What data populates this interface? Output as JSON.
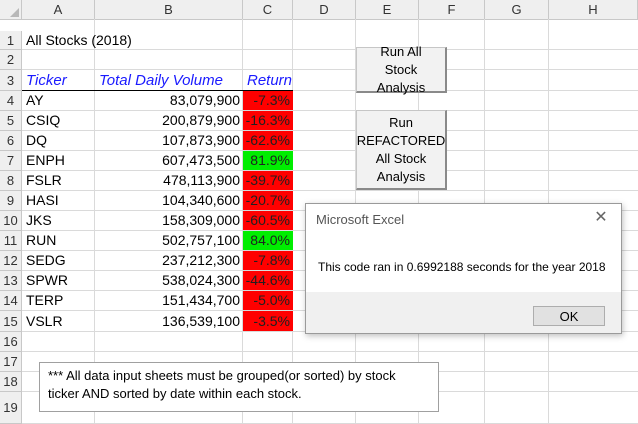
{
  "columns": [
    "A",
    "B",
    "C",
    "D",
    "E",
    "F",
    "G",
    "H"
  ],
  "rows": [
    "1",
    "2",
    "3",
    "4",
    "5",
    "6",
    "7",
    "8",
    "9",
    "10",
    "11",
    "12",
    "13",
    "14",
    "15",
    "16",
    "17",
    "18",
    "19"
  ],
  "title": "All Stocks (2018)",
  "headers": {
    "ticker": "Ticker",
    "volume": "Total Daily Volume",
    "return": "Return"
  },
  "data": [
    {
      "ticker": "AY",
      "volume": "83,079,900",
      "return": "-7.3%",
      "positive": false
    },
    {
      "ticker": "CSIQ",
      "volume": "200,879,900",
      "return": "-16.3%",
      "positive": false
    },
    {
      "ticker": "DQ",
      "volume": "107,873,900",
      "return": "-62.6%",
      "positive": false
    },
    {
      "ticker": "ENPH",
      "volume": "607,473,500",
      "return": "81.9%",
      "positive": true
    },
    {
      "ticker": "FSLR",
      "volume": "478,113,900",
      "return": "-39.7%",
      "positive": false
    },
    {
      "ticker": "HASI",
      "volume": "104,340,600",
      "return": "-20.7%",
      "positive": false
    },
    {
      "ticker": "JKS",
      "volume": "158,309,000",
      "return": "-60.5%",
      "positive": false
    },
    {
      "ticker": "RUN",
      "volume": "502,757,100",
      "return": "84.0%",
      "positive": true
    },
    {
      "ticker": "SEDG",
      "volume": "237,212,300",
      "return": "-7.8%",
      "positive": false
    },
    {
      "ticker": "SPWR",
      "volume": "538,024,300",
      "return": "-44.6%",
      "positive": false
    },
    {
      "ticker": "TERP",
      "volume": "151,434,700",
      "return": "-5.0%",
      "positive": false
    },
    {
      "ticker": "VSLR",
      "volume": "136,539,100",
      "return": "-3.5%",
      "positive": false
    }
  ],
  "buttons": {
    "run_all": "Run All Stock Analysis",
    "run_refactored": "Run REFACTORED All Stock Analysis"
  },
  "note": "***  All data input sheets must be grouped(or sorted) by stock ticker AND sorted by date within each stock.",
  "dialog": {
    "title": "Microsoft Excel",
    "message": "This code ran in 0.6992188 seconds for the year 2018",
    "ok_label": "OK"
  },
  "colors": {
    "negative": "#ff0000",
    "positive": "#00ee00",
    "header_text": "#1a1aff"
  }
}
